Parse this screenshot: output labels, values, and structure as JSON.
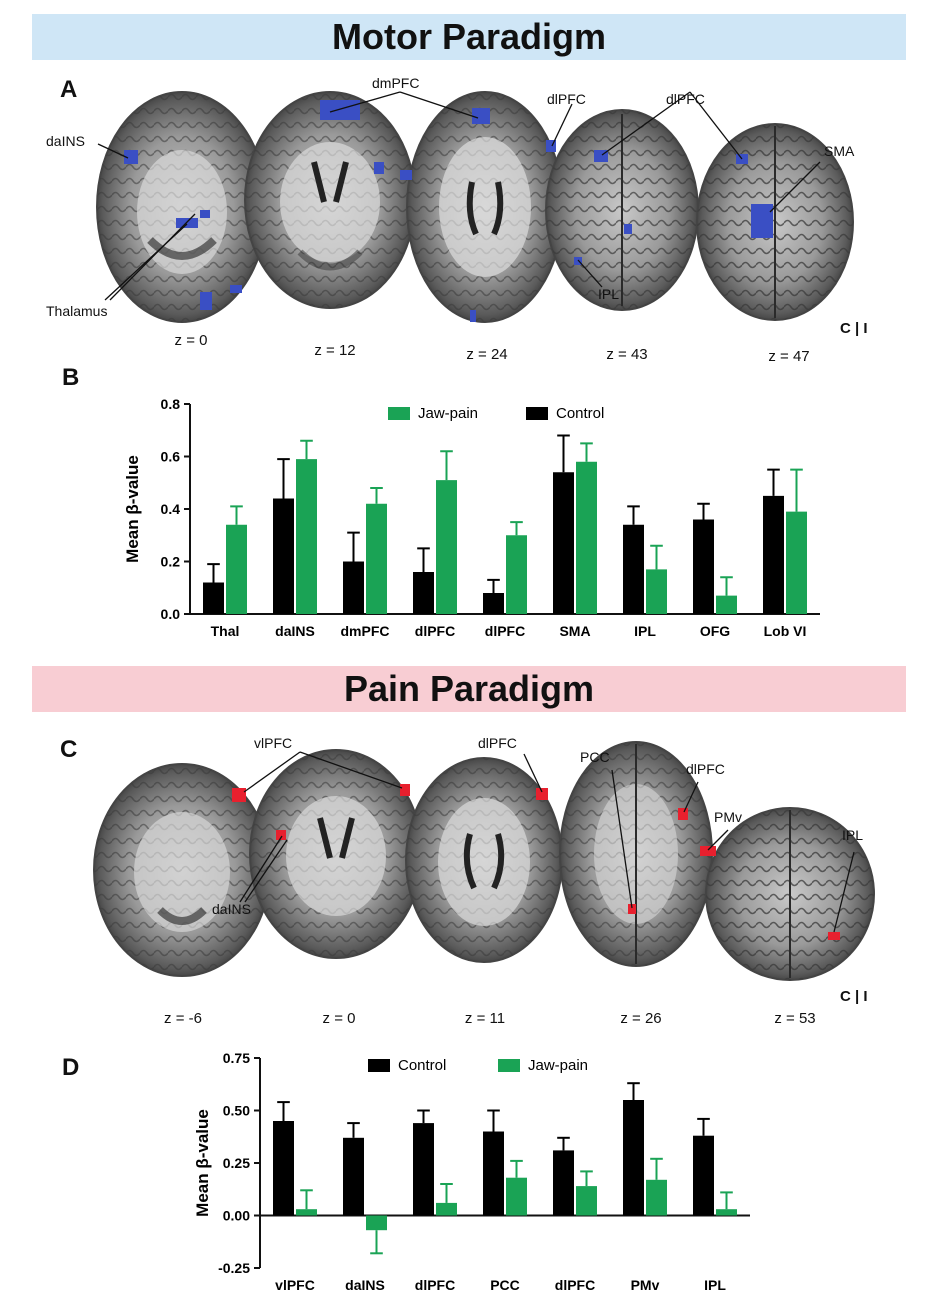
{
  "motor": {
    "banner": "Motor Paradigm",
    "panel_a": "A",
    "panel_b": "B",
    "slices": [
      "z = 0",
      "z = 12",
      "z = 24",
      "z = 43",
      "z = 47"
    ],
    "orientation": "C | I",
    "labels": {
      "dains": "daINS",
      "thalamus": "Thalamus",
      "dmpfc": "dmPFC",
      "dlpfc1": "dlPFC",
      "dlpfc2": "dlPFC",
      "sma": "SMA",
      "ipl": "IPL"
    },
    "activation_color": "#3a4fc4"
  },
  "pain": {
    "banner": "Pain Paradigm",
    "panel_c": "C",
    "panel_d": "D",
    "slices": [
      "z = -6",
      "z = 0",
      "z = 11",
      "z = 26",
      "z = 53"
    ],
    "orientation": "C | I",
    "labels": {
      "vlpfc": "vlPFC",
      "dains": "daINS",
      "dlpfc1": "dlPFC",
      "pcc": "PCC",
      "dlpfc2": "dlPFC",
      "pmv": "PMv",
      "ipl": "IPL"
    },
    "activation_color": "#e8202e"
  },
  "chart_data": [
    {
      "type": "bar",
      "ylabel": "Mean β-value",
      "ylim": [
        0,
        0.8
      ],
      "yticks": [
        "0.0",
        "0.2",
        "0.4",
        "0.6",
        "0.8"
      ],
      "categories": [
        "Thal",
        "daINS",
        "dmPFC",
        "dlPFC",
        "dlPFC",
        "SMA",
        "IPL",
        "OFG",
        "Lob VI"
      ],
      "series": [
        {
          "name": "Control",
          "color": "#000000",
          "values": [
            0.12,
            0.44,
            0.2,
            0.16,
            0.08,
            0.54,
            0.34,
            0.36,
            0.45
          ],
          "errors": [
            0.07,
            0.15,
            0.11,
            0.09,
            0.05,
            0.14,
            0.07,
            0.06,
            0.1
          ]
        },
        {
          "name": "Jaw-pain",
          "color": "#1aa355",
          "values": [
            0.34,
            0.59,
            0.42,
            0.51,
            0.3,
            0.58,
            0.17,
            0.07,
            0.39
          ],
          "errors": [
            0.07,
            0.07,
            0.06,
            0.11,
            0.05,
            0.07,
            0.09,
            0.07,
            0.16
          ]
        }
      ],
      "legend": [
        "Jaw-pain",
        "Control"
      ],
      "legend_position": "top"
    },
    {
      "type": "bar",
      "ylabel": "Mean β-value",
      "ylim": [
        -0.25,
        0.75
      ],
      "yticks": [
        "-0.25",
        "0.00",
        "0.25",
        "0.50",
        "0.75"
      ],
      "categories": [
        "vlPFC",
        "daINS",
        "dlPFC",
        "PCC",
        "dlPFC",
        "PMv",
        "IPL"
      ],
      "series": [
        {
          "name": "Control",
          "color": "#000000",
          "values": [
            0.45,
            0.37,
            0.44,
            0.4,
            0.31,
            0.55,
            0.38
          ],
          "errors": [
            0.09,
            0.07,
            0.06,
            0.1,
            0.06,
            0.08,
            0.08
          ]
        },
        {
          "name": "Jaw-pain",
          "color": "#1aa355",
          "values": [
            0.03,
            -0.07,
            0.06,
            0.18,
            0.14,
            0.17,
            0.03
          ],
          "errors": [
            0.09,
            0.11,
            0.09,
            0.08,
            0.07,
            0.1,
            0.08
          ]
        }
      ],
      "legend": [
        "Control",
        "Jaw-pain"
      ],
      "legend_position": "top"
    }
  ]
}
